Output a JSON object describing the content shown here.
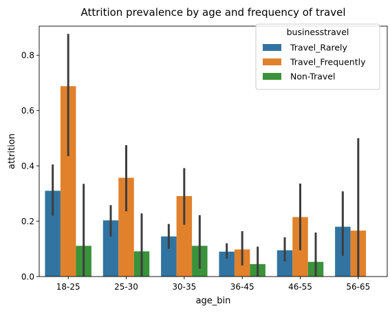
{
  "chart_data": {
    "type": "bar",
    "title": "Attrition prevalence by age and frequency of travel",
    "xlabel": "age_bin",
    "ylabel": "attrition",
    "categories": [
      "18-25",
      "25-30",
      "30-35",
      "36-45",
      "46-55",
      "56-65"
    ],
    "ylim": [
      0,
      0.905
    ],
    "yticks": [
      0.0,
      0.2,
      0.4,
      0.6,
      0.8
    ],
    "ytick_labels": [
      "0.0",
      "0.2",
      "0.4",
      "0.6",
      "0.8"
    ],
    "grid": false,
    "legend": {
      "title": "businesstravel",
      "placement": "top-right"
    },
    "series": [
      {
        "name": "Travel_Rarely",
        "color": "#3274a1",
        "values": [
          0.31,
          0.203,
          0.145,
          0.09,
          0.095,
          0.18
        ],
        "ci": [
          [
            0.22,
            0.405
          ],
          [
            0.145,
            0.258
          ],
          [
            0.1,
            0.19
          ],
          [
            0.065,
            0.12
          ],
          [
            0.055,
            0.142
          ],
          [
            0.075,
            0.308
          ]
        ]
      },
      {
        "name": "Travel_Frequently",
        "color": "#e1812c",
        "values": [
          0.688,
          0.357,
          0.291,
          0.098,
          0.215,
          0.166
        ],
        "ci": [
          [
            0.435,
            0.877
          ],
          [
            0.236,
            0.475
          ],
          [
            0.187,
            0.392
          ],
          [
            0.04,
            0.164
          ],
          [
            0.095,
            0.336
          ],
          [
            0.0,
            0.5
          ]
        ]
      },
      {
        "name": "Non-Travel",
        "color": "#3a923a",
        "values": [
          0.111,
          0.091,
          0.111,
          0.045,
          0.053,
          null
        ],
        "ci": [
          [
            0.0,
            0.335
          ],
          [
            0.0,
            0.228
          ],
          [
            0.028,
            0.222
          ],
          [
            0.0,
            0.108
          ],
          [
            0.0,
            0.159
          ],
          null
        ]
      }
    ]
  }
}
